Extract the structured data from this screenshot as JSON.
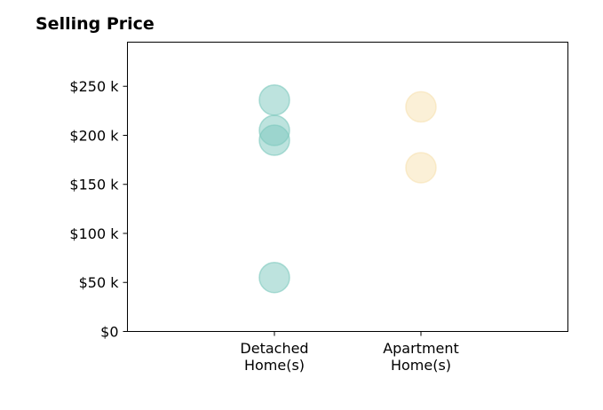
{
  "chart_data": {
    "type": "scatter",
    "title": "Selling Price",
    "xlabel": "",
    "ylabel": "",
    "categories": [
      [
        "Detached",
        "Home(s)"
      ],
      [
        "Apartment",
        "Home(s)"
      ]
    ],
    "ylim": [
      0,
      295000
    ],
    "y_ticks": [
      {
        "value": 0,
        "label": "$0"
      },
      {
        "value": 50000,
        "label": "$50 k"
      },
      {
        "value": 100000,
        "label": "$100 k"
      },
      {
        "value": 150000,
        "label": "$150 k"
      },
      {
        "value": 200000,
        "label": "$200 k"
      },
      {
        "value": 250000,
        "label": "$250 k"
      }
    ],
    "series": [
      {
        "category": 0,
        "color": "#7cc8bd",
        "values": [
          236000,
          205000,
          195000,
          55000
        ]
      },
      {
        "category": 1,
        "color": "#f7e1b0",
        "values": [
          229000,
          167000
        ]
      }
    ],
    "grid": false,
    "legend": "none"
  }
}
